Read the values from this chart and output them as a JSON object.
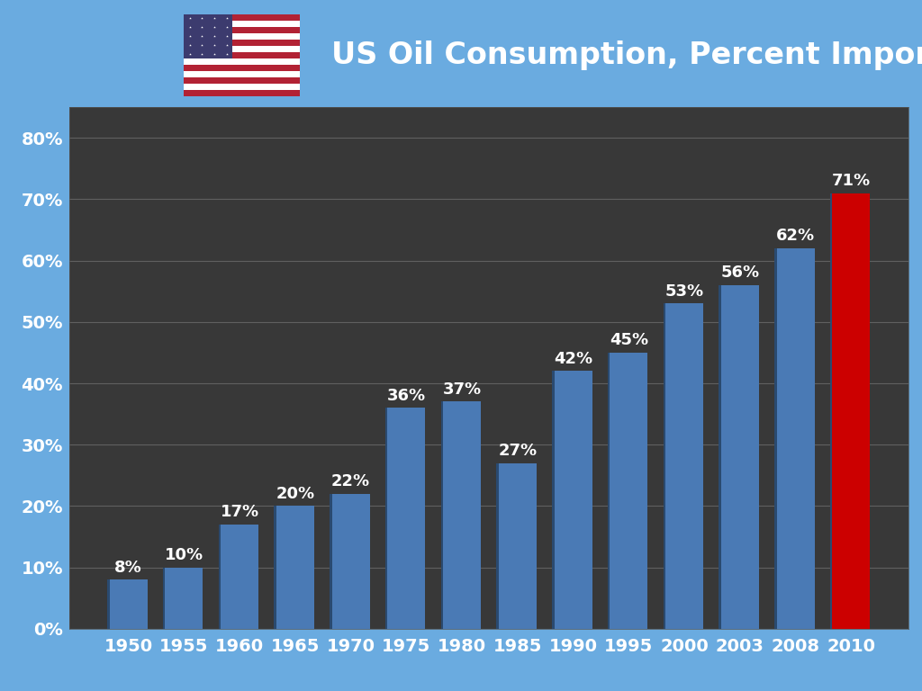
{
  "categories": [
    "1950",
    "1955",
    "1960",
    "1965",
    "1970",
    "1975",
    "1980",
    "1985",
    "1990",
    "1995",
    "2000",
    "2003",
    "2008",
    "2010"
  ],
  "values": [
    8,
    10,
    17,
    20,
    22,
    36,
    37,
    27,
    42,
    45,
    53,
    56,
    62,
    71
  ],
  "bar_colors": [
    "#4a7ab5",
    "#4a7ab5",
    "#4a7ab5",
    "#4a7ab5",
    "#4a7ab5",
    "#4a7ab5",
    "#4a7ab5",
    "#4a7ab5",
    "#4a7ab5",
    "#4a7ab5",
    "#4a7ab5",
    "#4a7ab5",
    "#4a7ab5",
    "#cc0000"
  ],
  "title": "US Oil Consumption, Percent Imported",
  "ylim": [
    0,
    85
  ],
  "yticks": [
    0,
    10,
    20,
    30,
    40,
    50,
    60,
    70,
    80
  ],
  "ytick_labels": [
    "0%",
    "10%",
    "20%",
    "30%",
    "40%",
    "50%",
    "60%",
    "70%",
    "80%"
  ],
  "plot_bg_color": "#383838",
  "outer_bg_color": "#6aabe0",
  "title_bg_color": "#0a0a0a",
  "chart_bg_color": "#0a0a0a",
  "text_color": "#ffffff",
  "grid_color": "#606060",
  "title_fontsize": 24,
  "tick_fontsize": 14,
  "bar_label_fontsize": 13,
  "flag_stripe_red": "#B22234",
  "flag_canton_blue": "#3C3B6E",
  "border_thickness": 0.018
}
